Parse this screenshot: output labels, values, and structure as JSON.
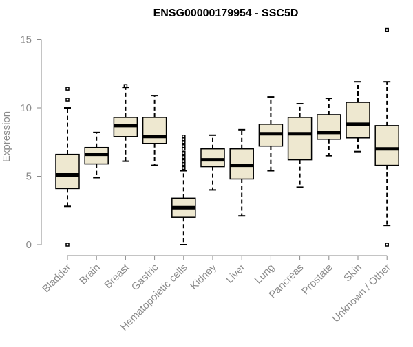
{
  "chart_data": {
    "type": "boxplot",
    "title": "ENSG00000179954 - SSC5D",
    "xlabel": "",
    "ylabel": "Expression",
    "ylim": [
      0,
      15.8
    ],
    "yticks": [
      0,
      5,
      10,
      15
    ],
    "grid": false,
    "colors": {
      "box_fill": "#EEE8D0",
      "stroke": "#000000",
      "axis_text": "#8a8a8a"
    },
    "categories": [
      "Bladder",
      "Brain",
      "Breast",
      "Gastric",
      "Hematopoietic cells",
      "Kidney",
      "Liver",
      "Lung",
      "Pancreas",
      "Prostate",
      "Skin",
      "Unknown / Other"
    ],
    "boxes": [
      {
        "whisker_low": 2.8,
        "q1": 4.1,
        "median": 5.1,
        "q3": 6.6,
        "whisker_high": 10.0,
        "outliers": [
          0.0,
          10.6,
          11.4
        ]
      },
      {
        "whisker_low": 4.9,
        "q1": 5.9,
        "median": 6.6,
        "q3": 7.1,
        "whisker_high": 8.2,
        "outliers": []
      },
      {
        "whisker_low": 6.1,
        "q1": 7.9,
        "median": 8.7,
        "q3": 9.3,
        "whisker_high": 11.5,
        "outliers": [
          11.6
        ]
      },
      {
        "whisker_low": 5.8,
        "q1": 7.4,
        "median": 7.9,
        "q3": 9.3,
        "whisker_high": 10.9,
        "outliers": []
      },
      {
        "whisker_low": 0.0,
        "q1": 2.0,
        "median": 2.7,
        "q3": 3.4,
        "whisker_high": 5.4,
        "outliers": [
          5.6,
          5.9,
          6.1,
          6.4,
          6.7,
          7.0,
          7.2,
          7.5,
          7.7,
          7.9
        ]
      },
      {
        "whisker_low": 4.0,
        "q1": 5.7,
        "median": 6.2,
        "q3": 7.0,
        "whisker_high": 8.0,
        "outliers": []
      },
      {
        "whisker_low": 2.1,
        "q1": 4.8,
        "median": 5.8,
        "q3": 7.0,
        "whisker_high": 8.4,
        "outliers": []
      },
      {
        "whisker_low": 5.4,
        "q1": 7.2,
        "median": 8.1,
        "q3": 8.8,
        "whisker_high": 10.8,
        "outliers": []
      },
      {
        "whisker_low": 4.2,
        "q1": 6.2,
        "median": 8.1,
        "q3": 9.3,
        "whisker_high": 10.3,
        "outliers": []
      },
      {
        "whisker_low": 6.5,
        "q1": 7.7,
        "median": 8.2,
        "q3": 9.5,
        "whisker_high": 10.7,
        "outliers": []
      },
      {
        "whisker_low": 6.8,
        "q1": 7.8,
        "median": 8.8,
        "q3": 10.4,
        "whisker_high": 11.9,
        "outliers": []
      },
      {
        "whisker_low": 1.4,
        "q1": 5.8,
        "median": 7.0,
        "q3": 8.7,
        "whisker_high": 11.9,
        "outliers": [
          0.0,
          15.7
        ]
      }
    ]
  }
}
